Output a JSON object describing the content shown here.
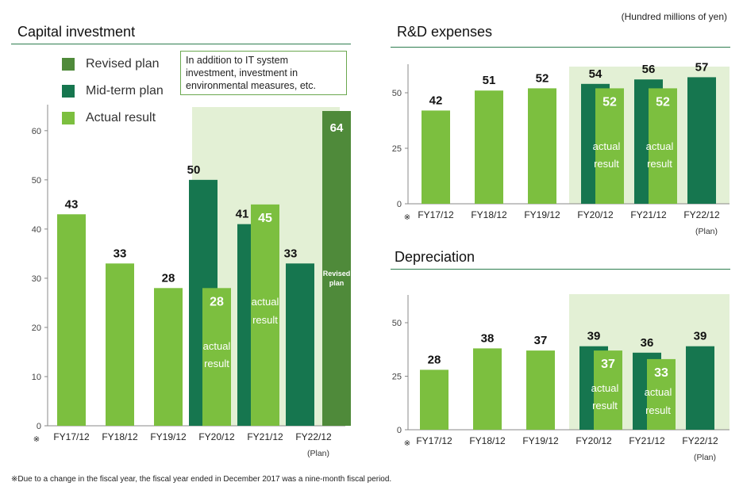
{
  "unit_note": "(Hundred millions of yen)",
  "footnote": "※Due to a change in the fiscal year, the fiscal year ended in December 2017 was a nine-month fiscal period.",
  "colors": {
    "actual": "#7cbf3f",
    "midterm": "#16764f",
    "revised": "#4f8a3a",
    "plan_bg": "#e3f0d5",
    "axis": "#888888"
  },
  "legend": [
    {
      "key": "revised",
      "label": "Revised plan"
    },
    {
      "key": "midterm",
      "label": "Mid-term plan"
    },
    {
      "key": "actual",
      "label": "Actual result"
    }
  ],
  "callout": "In addition to IT system investment, investment in environmental measures, etc.",
  "text_labels": {
    "actual1": "actual",
    "actual2": "result",
    "revised1": "Revised",
    "revised2": "plan"
  },
  "chart_data": [
    {
      "id": "capex",
      "type": "bar",
      "title": "Capital investment",
      "categories": [
        "FY17/12",
        "FY18/12",
        "FY19/12",
        "FY20/12",
        "FY21/12",
        "FY22/12"
      ],
      "category_notes": [
        "※",
        "",
        "",
        "",
        "",
        "(Plan)"
      ],
      "ylim": [
        0,
        64
      ],
      "yticks": [
        0,
        10,
        20,
        30,
        40,
        50,
        60
      ],
      "series": [
        {
          "name": "Actual result",
          "values": [
            43,
            33,
            28,
            28,
            45,
            null
          ]
        },
        {
          "name": "Mid-term plan",
          "values": [
            null,
            null,
            null,
            50,
            41,
            33
          ]
        },
        {
          "name": "Revised plan",
          "values": [
            null,
            null,
            null,
            null,
            null,
            64
          ]
        }
      ]
    },
    {
      "id": "rnd",
      "type": "bar",
      "title": "R&D expenses",
      "categories": [
        "FY17/12",
        "FY18/12",
        "FY19/12",
        "FY20/12",
        "FY21/12",
        "FY22/12"
      ],
      "category_notes": [
        "※",
        "",
        "",
        "",
        "",
        "(Plan)"
      ],
      "ylim": [
        0,
        60
      ],
      "yticks": [
        0,
        25,
        50
      ],
      "series": [
        {
          "name": "Actual result",
          "values": [
            42,
            51,
            52,
            52,
            52,
            null
          ]
        },
        {
          "name": "Mid-term plan",
          "values": [
            null,
            null,
            null,
            54,
            56,
            57
          ]
        }
      ]
    },
    {
      "id": "dep",
      "type": "bar",
      "title": "Depreciation",
      "categories": [
        "FY17/12",
        "FY18/12",
        "FY19/12",
        "FY20/12",
        "FY21/12",
        "FY22/12"
      ],
      "category_notes": [
        "※",
        "",
        "",
        "",
        "",
        "(Plan)"
      ],
      "ylim": [
        0,
        60
      ],
      "yticks": [
        0,
        25,
        50
      ],
      "series": [
        {
          "name": "Actual result",
          "values": [
            28,
            38,
            37,
            37,
            33,
            null
          ]
        },
        {
          "name": "Mid-term plan",
          "values": [
            null,
            null,
            null,
            39,
            36,
            39
          ]
        }
      ]
    }
  ]
}
